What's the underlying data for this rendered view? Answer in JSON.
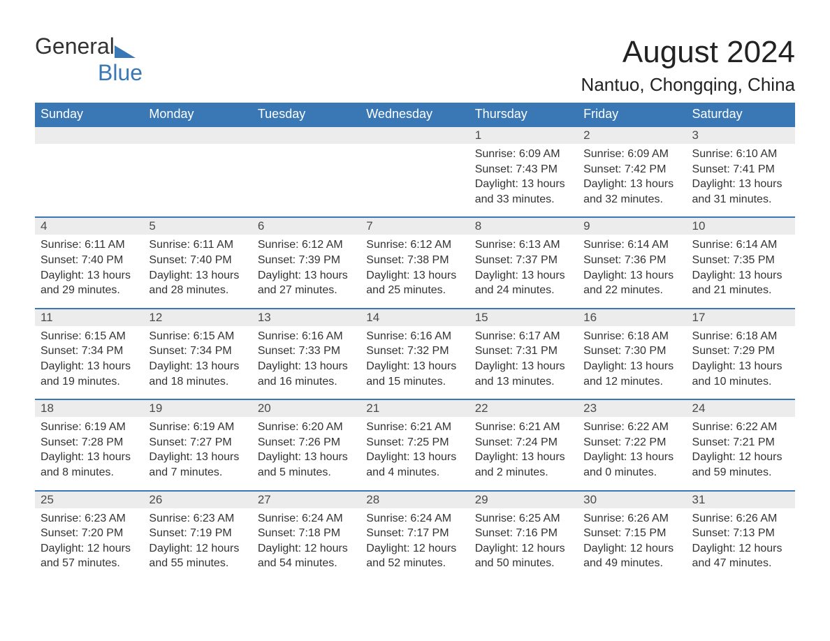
{
  "brand": {
    "part1": "General",
    "part2": "Blue"
  },
  "title": "August 2024",
  "location": "Nantuo, Chongqing, China",
  "colors": {
    "header_bg": "#3a78b5",
    "header_text": "#ffffff",
    "daynum_bg": "#ececec",
    "daynum_border": "#3a78b5",
    "body_text": "#333333",
    "logo_blue": "#3a78b5",
    "page_bg": "#ffffff"
  },
  "typography": {
    "title_fontsize": 44,
    "location_fontsize": 26,
    "header_fontsize": 18,
    "daynum_fontsize": 17,
    "body_fontsize": 16
  },
  "columns": [
    "Sunday",
    "Monday",
    "Tuesday",
    "Wednesday",
    "Thursday",
    "Friday",
    "Saturday"
  ],
  "weeks": [
    {
      "days": [
        {
          "num": "",
          "sunrise": "",
          "sunset": "",
          "daylight": ""
        },
        {
          "num": "",
          "sunrise": "",
          "sunset": "",
          "daylight": ""
        },
        {
          "num": "",
          "sunrise": "",
          "sunset": "",
          "daylight": ""
        },
        {
          "num": "",
          "sunrise": "",
          "sunset": "",
          "daylight": ""
        },
        {
          "num": "1",
          "sunrise": "Sunrise: 6:09 AM",
          "sunset": "Sunset: 7:43 PM",
          "daylight": "Daylight: 13 hours and 33 minutes."
        },
        {
          "num": "2",
          "sunrise": "Sunrise: 6:09 AM",
          "sunset": "Sunset: 7:42 PM",
          "daylight": "Daylight: 13 hours and 32 minutes."
        },
        {
          "num": "3",
          "sunrise": "Sunrise: 6:10 AM",
          "sunset": "Sunset: 7:41 PM",
          "daylight": "Daylight: 13 hours and 31 minutes."
        }
      ]
    },
    {
      "days": [
        {
          "num": "4",
          "sunrise": "Sunrise: 6:11 AM",
          "sunset": "Sunset: 7:40 PM",
          "daylight": "Daylight: 13 hours and 29 minutes."
        },
        {
          "num": "5",
          "sunrise": "Sunrise: 6:11 AM",
          "sunset": "Sunset: 7:40 PM",
          "daylight": "Daylight: 13 hours and 28 minutes."
        },
        {
          "num": "6",
          "sunrise": "Sunrise: 6:12 AM",
          "sunset": "Sunset: 7:39 PM",
          "daylight": "Daylight: 13 hours and 27 minutes."
        },
        {
          "num": "7",
          "sunrise": "Sunrise: 6:12 AM",
          "sunset": "Sunset: 7:38 PM",
          "daylight": "Daylight: 13 hours and 25 minutes."
        },
        {
          "num": "8",
          "sunrise": "Sunrise: 6:13 AM",
          "sunset": "Sunset: 7:37 PM",
          "daylight": "Daylight: 13 hours and 24 minutes."
        },
        {
          "num": "9",
          "sunrise": "Sunrise: 6:14 AM",
          "sunset": "Sunset: 7:36 PM",
          "daylight": "Daylight: 13 hours and 22 minutes."
        },
        {
          "num": "10",
          "sunrise": "Sunrise: 6:14 AM",
          "sunset": "Sunset: 7:35 PM",
          "daylight": "Daylight: 13 hours and 21 minutes."
        }
      ]
    },
    {
      "days": [
        {
          "num": "11",
          "sunrise": "Sunrise: 6:15 AM",
          "sunset": "Sunset: 7:34 PM",
          "daylight": "Daylight: 13 hours and 19 minutes."
        },
        {
          "num": "12",
          "sunrise": "Sunrise: 6:15 AM",
          "sunset": "Sunset: 7:34 PM",
          "daylight": "Daylight: 13 hours and 18 minutes."
        },
        {
          "num": "13",
          "sunrise": "Sunrise: 6:16 AM",
          "sunset": "Sunset: 7:33 PM",
          "daylight": "Daylight: 13 hours and 16 minutes."
        },
        {
          "num": "14",
          "sunrise": "Sunrise: 6:16 AM",
          "sunset": "Sunset: 7:32 PM",
          "daylight": "Daylight: 13 hours and 15 minutes."
        },
        {
          "num": "15",
          "sunrise": "Sunrise: 6:17 AM",
          "sunset": "Sunset: 7:31 PM",
          "daylight": "Daylight: 13 hours and 13 minutes."
        },
        {
          "num": "16",
          "sunrise": "Sunrise: 6:18 AM",
          "sunset": "Sunset: 7:30 PM",
          "daylight": "Daylight: 13 hours and 12 minutes."
        },
        {
          "num": "17",
          "sunrise": "Sunrise: 6:18 AM",
          "sunset": "Sunset: 7:29 PM",
          "daylight": "Daylight: 13 hours and 10 minutes."
        }
      ]
    },
    {
      "days": [
        {
          "num": "18",
          "sunrise": "Sunrise: 6:19 AM",
          "sunset": "Sunset: 7:28 PM",
          "daylight": "Daylight: 13 hours and 8 minutes."
        },
        {
          "num": "19",
          "sunrise": "Sunrise: 6:19 AM",
          "sunset": "Sunset: 7:27 PM",
          "daylight": "Daylight: 13 hours and 7 minutes."
        },
        {
          "num": "20",
          "sunrise": "Sunrise: 6:20 AM",
          "sunset": "Sunset: 7:26 PM",
          "daylight": "Daylight: 13 hours and 5 minutes."
        },
        {
          "num": "21",
          "sunrise": "Sunrise: 6:21 AM",
          "sunset": "Sunset: 7:25 PM",
          "daylight": "Daylight: 13 hours and 4 minutes."
        },
        {
          "num": "22",
          "sunrise": "Sunrise: 6:21 AM",
          "sunset": "Sunset: 7:24 PM",
          "daylight": "Daylight: 13 hours and 2 minutes."
        },
        {
          "num": "23",
          "sunrise": "Sunrise: 6:22 AM",
          "sunset": "Sunset: 7:22 PM",
          "daylight": "Daylight: 13 hours and 0 minutes."
        },
        {
          "num": "24",
          "sunrise": "Sunrise: 6:22 AM",
          "sunset": "Sunset: 7:21 PM",
          "daylight": "Daylight: 12 hours and 59 minutes."
        }
      ]
    },
    {
      "days": [
        {
          "num": "25",
          "sunrise": "Sunrise: 6:23 AM",
          "sunset": "Sunset: 7:20 PM",
          "daylight": "Daylight: 12 hours and 57 minutes."
        },
        {
          "num": "26",
          "sunrise": "Sunrise: 6:23 AM",
          "sunset": "Sunset: 7:19 PM",
          "daylight": "Daylight: 12 hours and 55 minutes."
        },
        {
          "num": "27",
          "sunrise": "Sunrise: 6:24 AM",
          "sunset": "Sunset: 7:18 PM",
          "daylight": "Daylight: 12 hours and 54 minutes."
        },
        {
          "num": "28",
          "sunrise": "Sunrise: 6:24 AM",
          "sunset": "Sunset: 7:17 PM",
          "daylight": "Daylight: 12 hours and 52 minutes."
        },
        {
          "num": "29",
          "sunrise": "Sunrise: 6:25 AM",
          "sunset": "Sunset: 7:16 PM",
          "daylight": "Daylight: 12 hours and 50 minutes."
        },
        {
          "num": "30",
          "sunrise": "Sunrise: 6:26 AM",
          "sunset": "Sunset: 7:15 PM",
          "daylight": "Daylight: 12 hours and 49 minutes."
        },
        {
          "num": "31",
          "sunrise": "Sunrise: 6:26 AM",
          "sunset": "Sunset: 7:13 PM",
          "daylight": "Daylight: 12 hours and 47 minutes."
        }
      ]
    }
  ]
}
